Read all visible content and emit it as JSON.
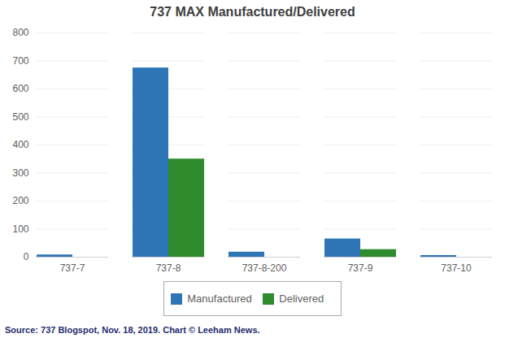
{
  "chart_data": {
    "type": "bar",
    "title": "737 MAX Manufactured/Delivered",
    "categories": [
      "737-7",
      "737-8",
      "737-8-200",
      "737-9",
      "737-10"
    ],
    "series": [
      {
        "name": "Manufactured",
        "color": "#2E75B6",
        "values": [
          8,
          675,
          18,
          65,
          6
        ]
      },
      {
        "name": "Delivered",
        "color": "#2E8B2E",
        "values": [
          0,
          350,
          0,
          27,
          0
        ]
      }
    ],
    "ylim": [
      0,
      800
    ],
    "yticks": [
      0,
      100,
      200,
      300,
      400,
      500,
      600,
      700,
      800
    ],
    "grid": true,
    "legend": "bottom",
    "caption": "Source: 737 Blogspot, Nov. 18, 2019. Chart © Leeham News."
  }
}
